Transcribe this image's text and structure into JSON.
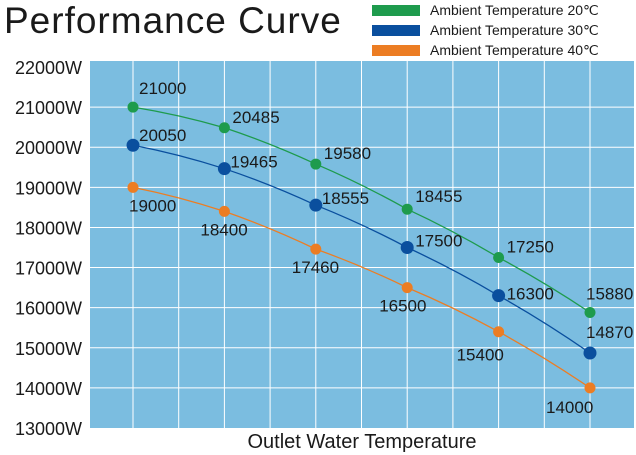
{
  "chart_data": {
    "type": "line",
    "title": "Performance Curve",
    "xlabel": "Outlet Water Temperature",
    "ylabel": "",
    "ylim": [
      13000,
      22000
    ],
    "y_ticks": [
      "22000W",
      "21000W",
      "20000W",
      "19000W",
      "18000W",
      "17000W",
      "16000W",
      "15000W",
      "14000W",
      "13000W"
    ],
    "x_points": 6,
    "grid": true,
    "legend_position": "top-right",
    "background_color": "#7bbde0",
    "series": [
      {
        "name": "Ambient Temperature 20℃",
        "color": "#1e9b4d",
        "values": [
          21000,
          20485,
          19580,
          18455,
          17250,
          15880
        ]
      },
      {
        "name": "Ambient Temperature 30℃",
        "color": "#0a4f9e",
        "values": [
          20050,
          19465,
          18555,
          17500,
          16300,
          14870
        ]
      },
      {
        "name": "Ambient Temperature 40℃",
        "color": "#ec7d23",
        "values": [
          19000,
          18400,
          17460,
          16500,
          15400,
          14000
        ]
      }
    ],
    "data_labels": [
      [
        "21000",
        "20485",
        "19580",
        "18455",
        "17250",
        "15880"
      ],
      [
        "20050",
        "19465",
        "18555",
        "17500",
        "16300",
        "14870"
      ],
      [
        "19000",
        "18400",
        "17460",
        "16500",
        "15400",
        "14000"
      ]
    ]
  }
}
